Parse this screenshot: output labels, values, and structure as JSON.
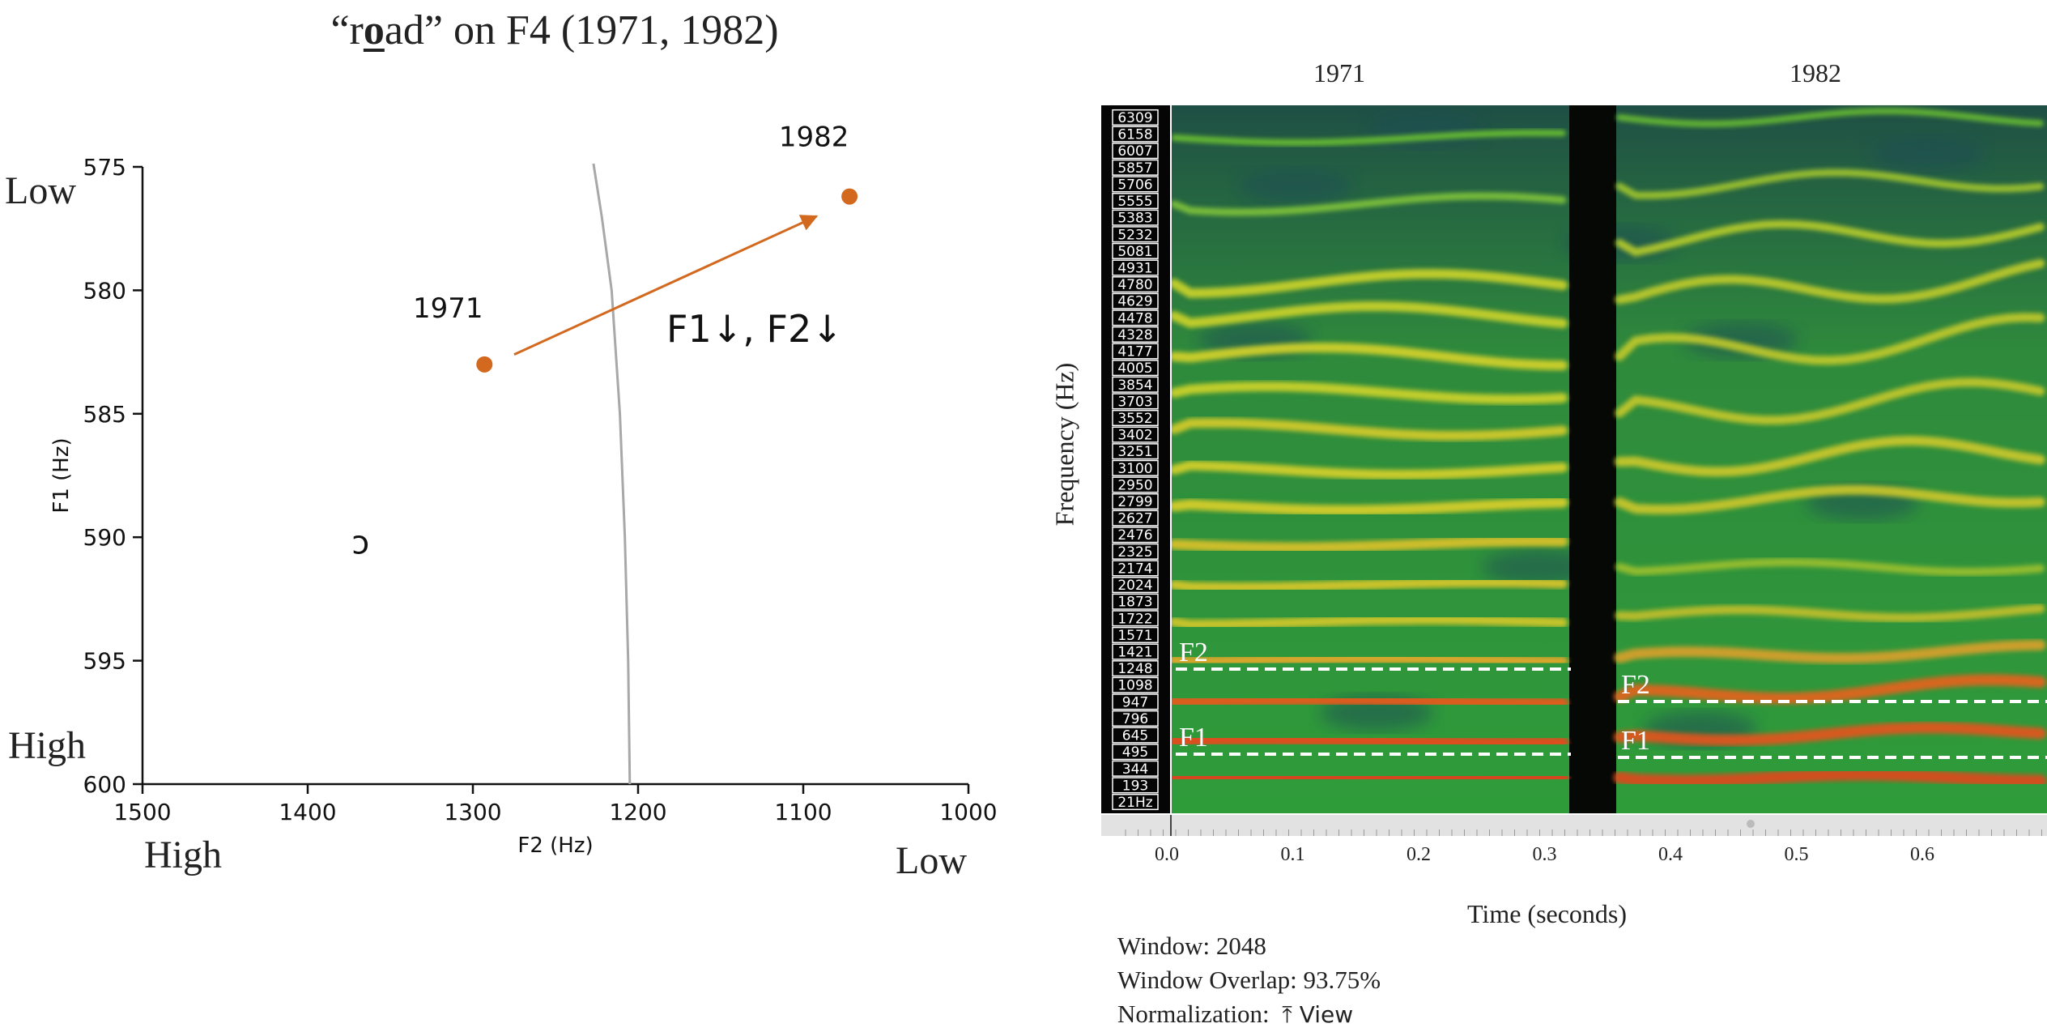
{
  "title": {
    "prefix": "“r",
    "emph": "o",
    "suffix": "ad” on F4 (1971, 1982)"
  },
  "left_corner_labels": {
    "top_left": "Low",
    "bottom_left": "High",
    "bottom_x_left": "High",
    "bottom_x_right": "Low"
  },
  "spectro": {
    "col_labels": [
      "1971",
      "1982"
    ],
    "y_label": "Frequency (Hz)",
    "x_label": "Time (seconds)",
    "freq_ticks": [
      "6309",
      "6158",
      "6007",
      "5857",
      "5706",
      "5555",
      "5383",
      "5232",
      "5081",
      "4931",
      "4780",
      "4629",
      "4478",
      "4328",
      "4177",
      "4005",
      "3854",
      "3703",
      "3552",
      "3402",
      "3251",
      "3100",
      "2950",
      "2799",
      "2627",
      "2476",
      "2325",
      "2174",
      "2024",
      "1873",
      "1722",
      "1571",
      "1421",
      "1248",
      "1098",
      "947",
      "796",
      "645",
      "495",
      "344",
      "193",
      "21Hz"
    ],
    "time_ticks": [
      "0.0",
      "0.1",
      "0.2",
      "0.3",
      "0.4",
      "0.5",
      "0.6"
    ],
    "formant_labels": {
      "f1": "F1",
      "f2": "F2"
    },
    "window": "Window: 2048",
    "overlap": "Window Overlap: 93.75%",
    "normalization": "Normalization:",
    "view_icon": "⤒",
    "view_label": "View"
  },
  "chart_data": [
    {
      "type": "scatter",
      "title": "“road” on F4 (1971, 1982)",
      "xlabel": "F2 (Hz)",
      "ylabel": "F1 (Hz)",
      "xlim": [
        1500,
        1000
      ],
      "ylim": [
        600,
        575
      ],
      "x_ticks": [
        1500,
        1400,
        1300,
        1200,
        1100,
        1000
      ],
      "y_ticks": [
        575,
        580,
        585,
        590,
        595,
        600
      ],
      "points": [
        {
          "label": "1971",
          "x": 1293,
          "y": 583.0,
          "color": "#d2691e"
        },
        {
          "label": "1982",
          "x": 1072,
          "y": 576.2,
          "color": "#d2691e"
        }
      ],
      "arrow": {
        "from": [
          1275,
          582.6
        ],
        "to": [
          1092,
          577.0
        ],
        "color": "#d2691e"
      },
      "annotation": "F1↓, F2↓",
      "vowel_symbol": {
        "text": "ɔ",
        "x": 1368,
        "y": 590.2
      },
      "boundary_curve": [
        [
          1227,
          575
        ],
        [
          1222,
          577
        ],
        [
          1216,
          580
        ],
        [
          1211,
          585
        ],
        [
          1208,
          590
        ],
        [
          1206,
          595
        ],
        [
          1205,
          600
        ]
      ],
      "boundary_color": "#a8a8a8"
    }
  ]
}
